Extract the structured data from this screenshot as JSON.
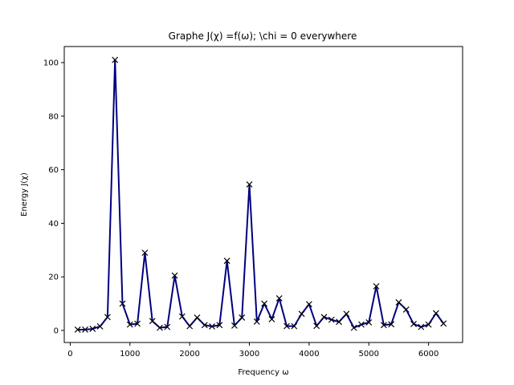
{
  "chart_data": {
    "type": "line",
    "title": "Graphe  J(χ) =f(ω); \\chi = 0 everywhere",
    "xlabel": "Frequency ω",
    "ylabel": "Energy J(χ)",
    "xlim": [
      -100,
      6570
    ],
    "ylim": [
      -4.5,
      106
    ],
    "xticks": [
      0,
      1000,
      2000,
      3000,
      4000,
      5000,
      6000
    ],
    "yticks": [
      0,
      20,
      40,
      60,
      80,
      100
    ],
    "grid": false,
    "legend": "none",
    "series": [
      {
        "color": "#000080",
        "marker": "x",
        "x": [
          125,
          250,
          375,
          500,
          625,
          750,
          875,
          1000,
          1125,
          1250,
          1375,
          1500,
          1625,
          1750,
          1875,
          2000,
          2125,
          2250,
          2375,
          2500,
          2625,
          2750,
          2875,
          3000,
          3125,
          3250,
          3375,
          3500,
          3625,
          3750,
          3875,
          4000,
          4125,
          4250,
          4375,
          4500,
          4625,
          4750,
          4875,
          5000,
          5125,
          5250,
          5375,
          5500,
          5625,
          5750,
          5875,
          6000,
          6125,
          6250
        ],
        "y": [
          0.3,
          0.3,
          0.6,
          1.5,
          5.0,
          101.0,
          10.0,
          2.2,
          2.5,
          29.0,
          3.5,
          1.0,
          1.3,
          20.5,
          5.2,
          1.6,
          4.8,
          2.0,
          1.5,
          2.0,
          26.0,
          1.8,
          4.8,
          54.5,
          3.3,
          10.0,
          4.2,
          12.0,
          1.6,
          1.6,
          6.2,
          9.8,
          1.7,
          5.0,
          4.0,
          3.2,
          6.2,
          1.0,
          2.2,
          3.0,
          16.5,
          2.0,
          2.3,
          10.5,
          7.8,
          2.4,
          1.3,
          2.2,
          6.4,
          2.6
        ]
      }
    ]
  }
}
